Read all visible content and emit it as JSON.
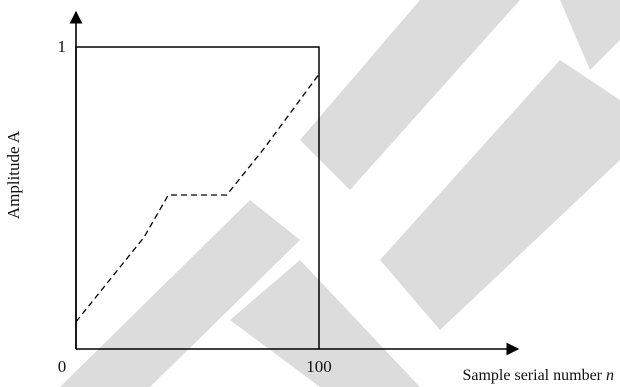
{
  "chart_data": {
    "type": "line",
    "xlabel": "Sample serial number",
    "xlabel_var": "n",
    "ylabel": "Amplitude A",
    "x_ticks": [
      "0",
      "100"
    ],
    "y_ticks": [
      "1"
    ],
    "xlim": [
      0,
      100
    ],
    "ylim": [
      0,
      1
    ],
    "grid": false,
    "series": [
      {
        "style": "solid",
        "x": [
          0,
          0,
          100,
          100
        ],
        "y": [
          0,
          1,
          1,
          0
        ]
      },
      {
        "style": "dashed",
        "x": [
          0,
          28,
          38,
          48,
          62,
          77,
          100
        ],
        "y": [
          0.09,
          0.37,
          0.51,
          0.51,
          0.51,
          0.66,
          0.91
        ]
      }
    ]
  },
  "watermark": {
    "present": true,
    "color": "#dcdcdc"
  }
}
